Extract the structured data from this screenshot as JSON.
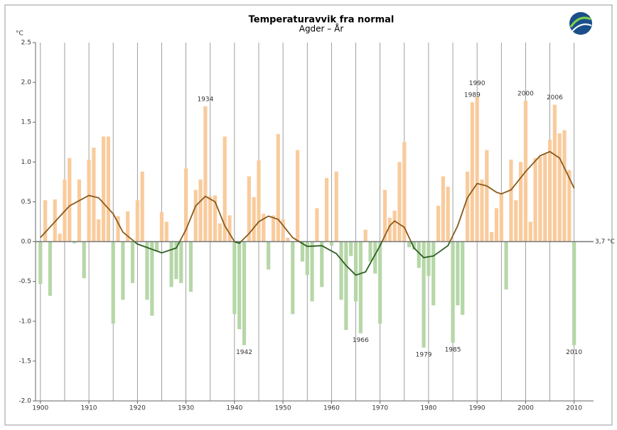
{
  "chart_data": {
    "type": "bar",
    "title": "Temperaturavvik fra normal",
    "subtitle": "Agder – År",
    "y_unit": "°C",
    "reference_label": "3,7 °C",
    "x": [
      1900,
      1901,
      1902,
      1903,
      1904,
      1905,
      1906,
      1907,
      1908,
      1909,
      1910,
      1911,
      1912,
      1913,
      1914,
      1915,
      1916,
      1917,
      1918,
      1919,
      1920,
      1921,
      1922,
      1923,
      1924,
      1925,
      1926,
      1927,
      1928,
      1929,
      1930,
      1931,
      1932,
      1933,
      1934,
      1935,
      1936,
      1937,
      1938,
      1939,
      1940,
      1941,
      1942,
      1943,
      1944,
      1945,
      1946,
      1947,
      1948,
      1949,
      1950,
      1951,
      1952,
      1953,
      1954,
      1955,
      1956,
      1957,
      1958,
      1959,
      1960,
      1961,
      1962,
      1963,
      1964,
      1965,
      1966,
      1967,
      1968,
      1969,
      1970,
      1971,
      1972,
      1973,
      1974,
      1975,
      1976,
      1977,
      1978,
      1979,
      1980,
      1981,
      1982,
      1983,
      1984,
      1985,
      1986,
      1987,
      1988,
      1989,
      1990,
      1991,
      1992,
      1993,
      1994,
      1995,
      1996,
      1997,
      1998,
      1999,
      2000,
      2001,
      2002,
      2003,
      2004,
      2005,
      2006,
      2007,
      2008,
      2009,
      2010
    ],
    "values": [
      -0.53,
      0.52,
      -0.68,
      0.53,
      0.1,
      0.78,
      1.05,
      -0.02,
      0.78,
      -0.46,
      1.03,
      1.18,
      0.28,
      1.32,
      1.32,
      -1.03,
      0.32,
      -0.73,
      0.38,
      -0.52,
      0.52,
      0.88,
      -0.73,
      -0.93,
      -0.12,
      0.37,
      0.25,
      -0.57,
      -0.47,
      -0.52,
      0.92,
      -0.63,
      0.65,
      0.78,
      1.7,
      0.57,
      0.58,
      0.23,
      1.32,
      0.33,
      -0.91,
      -1.1,
      -1.3,
      0.82,
      0.56,
      1.02,
      0.35,
      -0.35,
      0.33,
      1.35,
      0.28,
      0.05,
      -0.91,
      1.15,
      -0.25,
      -0.42,
      -0.75,
      0.42,
      -0.57,
      0.8,
      -0.05,
      0.88,
      -0.73,
      -1.11,
      -0.18,
      -0.75,
      -1.15,
      0.15,
      -0.25,
      -0.4,
      -1.03,
      0.65,
      0.3,
      0.39,
      1.0,
      1.25,
      -0.07,
      -0.1,
      -0.33,
      -1.33,
      -0.43,
      -0.8,
      0.45,
      0.82,
      0.69,
      -1.27,
      -0.8,
      -0.92,
      0.88,
      1.75,
      1.82,
      0.78,
      1.15,
      0.12,
      0.42,
      0.6,
      -0.6,
      1.03,
      0.52,
      1.0,
      1.77,
      0.25,
      1.05,
      1.07,
      1.1,
      1.28,
      1.72,
      1.36,
      1.4,
      0.9,
      -1.3
    ],
    "positive_color": "#f9cb9c",
    "negative_color": "#b6d7a8",
    "trend": {
      "x": [
        1900,
        1903,
        1906,
        1910,
        1912,
        1915,
        1917,
        1920,
        1925,
        1928,
        1930,
        1932,
        1934,
        1936,
        1938,
        1940,
        1941,
        1943,
        1945,
        1947,
        1949,
        1952,
        1955,
        1958,
        1961,
        1963,
        1965,
        1967,
        1970,
        1972,
        1973,
        1975,
        1977,
        1979,
        1981,
        1984,
        1986,
        1988,
        1990,
        1992,
        1994,
        1995,
        1997,
        2000,
        2003,
        2005,
        2007,
        2009,
        2010
      ],
      "values": [
        0.05,
        0.25,
        0.45,
        0.58,
        0.55,
        0.35,
        0.12,
        -0.03,
        -0.14,
        -0.08,
        0.15,
        0.45,
        0.57,
        0.5,
        0.2,
        0.0,
        -0.02,
        0.1,
        0.25,
        0.32,
        0.28,
        0.05,
        -0.06,
        -0.05,
        -0.15,
        -0.3,
        -0.42,
        -0.38,
        -0.05,
        0.2,
        0.26,
        0.18,
        -0.08,
        -0.2,
        -0.18,
        -0.05,
        0.2,
        0.55,
        0.73,
        0.7,
        0.62,
        0.6,
        0.65,
        0.88,
        1.08,
        1.13,
        1.05,
        0.8,
        0.67
      ],
      "colors": [
        "#8a5a1c",
        "#2d5e22"
      ]
    },
    "annotations": [
      1934,
      1942,
      1966,
      1979,
      1985,
      1989,
      1990,
      2000,
      2006,
      2010
    ],
    "xlim": [
      1899,
      2014
    ],
    "xticks": [
      1900,
      1910,
      1920,
      1930,
      1940,
      1950,
      1960,
      1970,
      1980,
      1990,
      2000,
      2010
    ],
    "xminor": [
      1905,
      1915,
      1925,
      1935,
      1945,
      1955,
      1965,
      1975,
      1985,
      1995,
      2005
    ],
    "ylim": [
      -2.0,
      2.5
    ],
    "yticks": [
      {
        "value": -2.0,
        "label": "-2.0"
      },
      -1.5,
      {
        "value": -1.0,
        "label": "-1.0"
      },
      -0.5,
      {
        "value": 0.0,
        "label": "0.0"
      },
      0.5,
      {
        "value": 1.0,
        "label": "1.0"
      },
      1.5,
      {
        "value": 2.0,
        "label": "2.0"
      },
      2.5
    ],
    "grid": true
  }
}
